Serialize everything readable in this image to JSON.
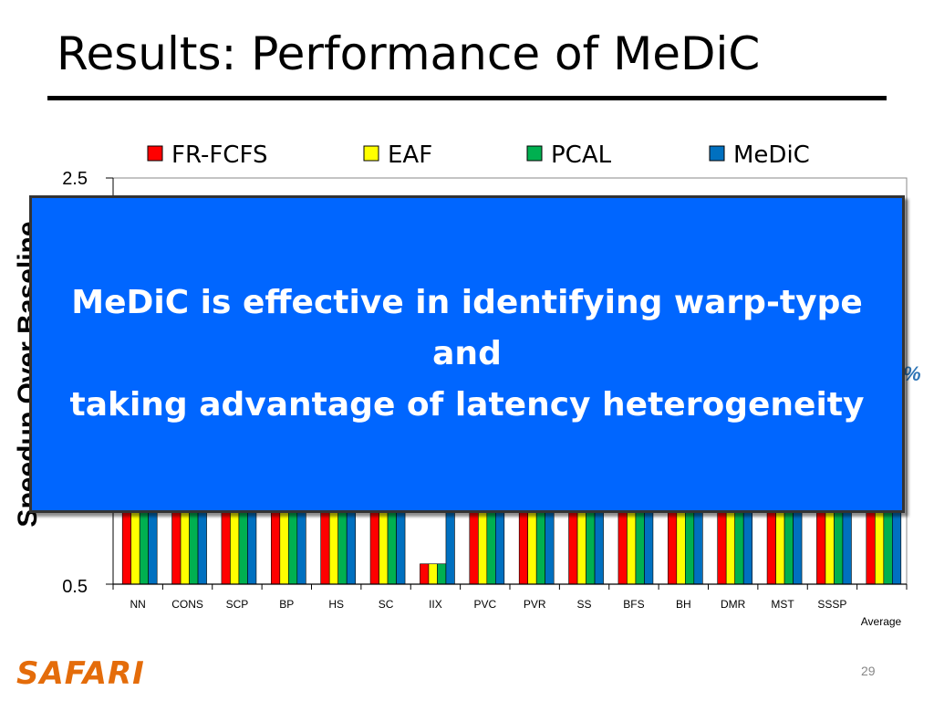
{
  "slide": {
    "title": "Results: Performance of MeDiC",
    "callout_line1": "MeDiC is effective in identifying warp-type and",
    "callout_line2": "taking advantage of latency heterogeneity",
    "partial_label": "%",
    "logo_text": "SAFARI",
    "page_number": "29"
  },
  "colors": {
    "FR-FCFS": "#FF0000",
    "EAF": "#FFFF00",
    "PCAL": "#00B050",
    "MeDiC": "#0070C0",
    "callout_bg": "#0066FF",
    "logo": "#E46C0A"
  },
  "chart_data": {
    "type": "bar",
    "title": "",
    "xlabel": "",
    "ylabel": "Speedup Over Baseline",
    "ylim": [
      0.5,
      2.5
    ],
    "y_ticks_visible": [
      "0.5",
      "2.5"
    ],
    "legend_position": "top",
    "grid": false,
    "categories": [
      "NN",
      "CONS",
      "SCP",
      "BP",
      "HS",
      "SC",
      "IIX",
      "PVC",
      "PVR",
      "SS",
      "BFS",
      "BH",
      "DMR",
      "MST",
      "SSSP",
      "Average"
    ],
    "series": [
      {
        "name": "FR-FCFS",
        "values": [
          1.0,
          1.0,
          1.0,
          1.0,
          1.0,
          1.0,
          0.6,
          1.0,
          1.0,
          1.0,
          1.0,
          1.0,
          1.0,
          1.0,
          1.0,
          1.0
        ]
      },
      {
        "name": "EAF",
        "values": [
          1.0,
          1.0,
          1.0,
          1.0,
          1.0,
          1.0,
          0.6,
          1.0,
          1.0,
          1.0,
          1.0,
          1.0,
          1.0,
          1.0,
          1.0,
          1.0
        ]
      },
      {
        "name": "PCAL",
        "values": [
          1.0,
          1.0,
          1.0,
          1.0,
          1.0,
          1.0,
          0.6,
          1.0,
          1.0,
          1.0,
          1.0,
          1.0,
          1.0,
          1.0,
          1.0,
          1.0
        ]
      },
      {
        "name": "MeDiC",
        "values": [
          1.0,
          1.0,
          1.0,
          1.0,
          1.0,
          1.0,
          1.0,
          1.0,
          1.0,
          1.0,
          1.0,
          1.0,
          1.0,
          1.0,
          1.0,
          1.0
        ]
      }
    ]
  }
}
